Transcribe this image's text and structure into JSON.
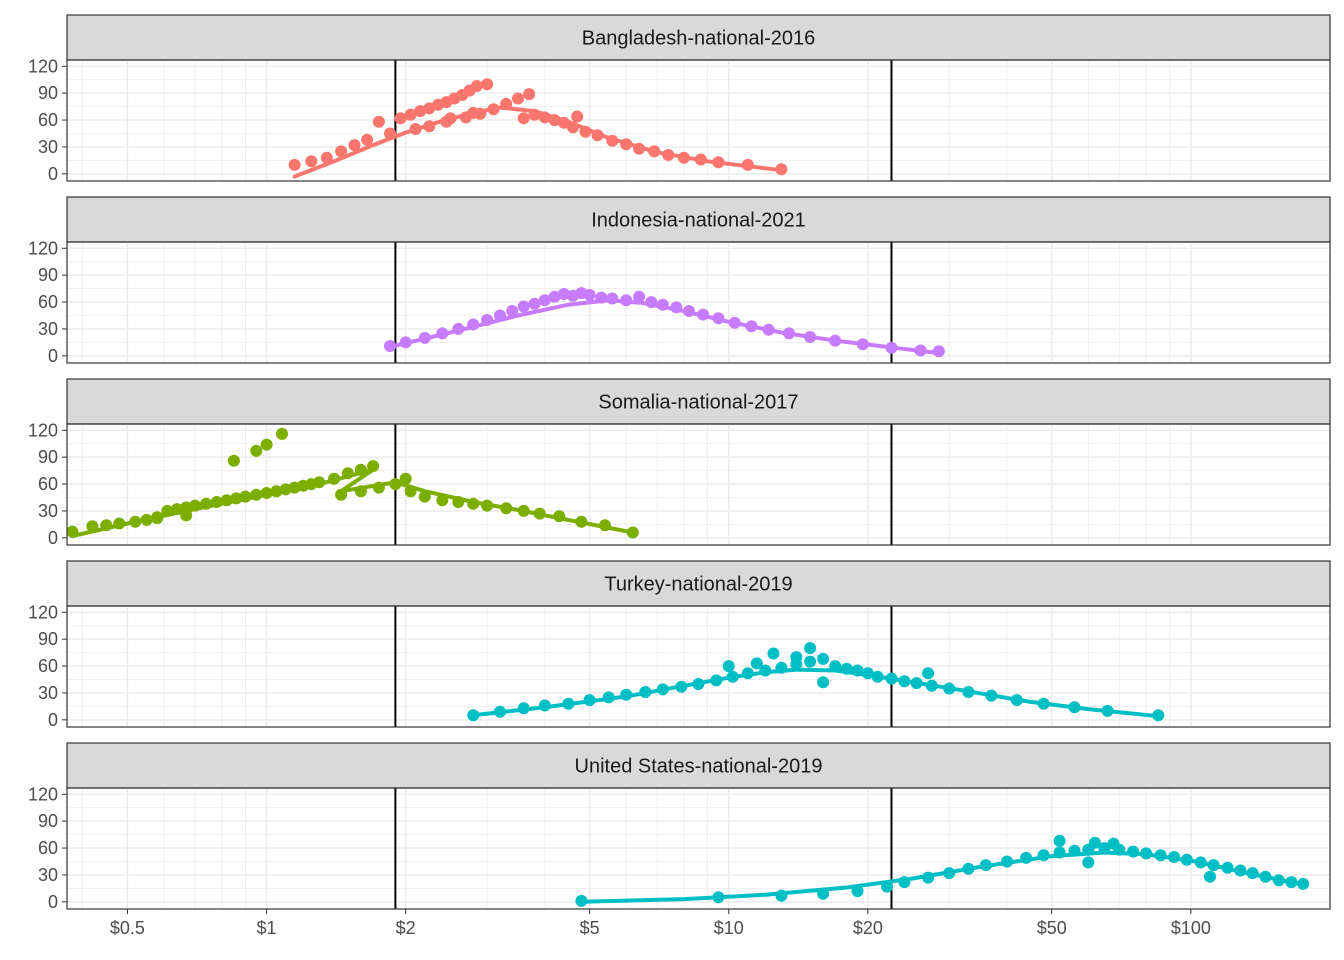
{
  "chart_data": {
    "type": "scatter",
    "facet_layout": "stacked",
    "x_scale": "log",
    "x_label": "",
    "y_label": "",
    "x_range": [
      0.37,
      200
    ],
    "y_range": [
      -8,
      127
    ],
    "x_ticks": [
      {
        "value": 0.5,
        "label": "$0.5"
      },
      {
        "value": 1,
        "label": "$1"
      },
      {
        "value": 2,
        "label": "$2"
      },
      {
        "value": 5,
        "label": "$5"
      },
      {
        "value": 10,
        "label": "$10"
      },
      {
        "value": 20,
        "label": "$20"
      },
      {
        "value": 50,
        "label": "$50"
      },
      {
        "value": 100,
        "label": "$100"
      }
    ],
    "y_ticks": [
      {
        "value": 0,
        "label": "0"
      },
      {
        "value": 30,
        "label": "30"
      },
      {
        "value": 60,
        "label": "60"
      },
      {
        "value": 90,
        "label": "90"
      },
      {
        "value": 120,
        "label": "120"
      }
    ],
    "reference_lines_x": [
      1.9,
      22.5
    ],
    "grid": true,
    "legend": "none",
    "panels": [
      {
        "title": "Bangladesh-national-2016",
        "color": "#F8766D",
        "points": [
          [
            1.15,
            10
          ],
          [
            1.25,
            14
          ],
          [
            1.35,
            18
          ],
          [
            1.45,
            25
          ],
          [
            1.55,
            32
          ],
          [
            1.65,
            38
          ],
          [
            1.75,
            58
          ],
          [
            1.85,
            45
          ],
          [
            1.95,
            62
          ],
          [
            2.05,
            66
          ],
          [
            2.15,
            70
          ],
          [
            2.25,
            73
          ],
          [
            2.35,
            77
          ],
          [
            2.45,
            80
          ],
          [
            2.55,
            84
          ],
          [
            2.65,
            88
          ],
          [
            2.75,
            93
          ],
          [
            2.85,
            98
          ],
          [
            3.0,
            100
          ],
          [
            2.1,
            50
          ],
          [
            2.25,
            53
          ],
          [
            2.45,
            58
          ],
          [
            2.7,
            63
          ],
          [
            2.9,
            67
          ],
          [
            3.1,
            72
          ],
          [
            3.3,
            78
          ],
          [
            3.5,
            84
          ],
          [
            3.7,
            89
          ],
          [
            2.5,
            62
          ],
          [
            2.8,
            68
          ],
          [
            3.6,
            62
          ],
          [
            3.8,
            66
          ],
          [
            4.0,
            63
          ],
          [
            4.2,
            60
          ],
          [
            4.4,
            57
          ],
          [
            4.7,
            64
          ],
          [
            4.6,
            52
          ],
          [
            4.9,
            47
          ],
          [
            5.2,
            43
          ],
          [
            5.6,
            37
          ],
          [
            6.0,
            33
          ],
          [
            6.4,
            28
          ],
          [
            6.9,
            25
          ],
          [
            7.4,
            21
          ],
          [
            8.0,
            18
          ],
          [
            8.7,
            16
          ],
          [
            9.5,
            13
          ],
          [
            11,
            10
          ],
          [
            13,
            5
          ]
        ],
        "fit": [
          [
            1.15,
            -3
          ],
          [
            1.4,
            14
          ],
          [
            1.7,
            32
          ],
          [
            2.0,
            46
          ],
          [
            2.4,
            59
          ],
          [
            2.8,
            68
          ],
          [
            3.2,
            74
          ],
          [
            3.8,
            70
          ],
          [
            4.5,
            58
          ],
          [
            5.5,
            40
          ],
          [
            7,
            24
          ],
          [
            9,
            14
          ],
          [
            13,
            4
          ]
        ]
      },
      {
        "title": "Indonesia-national-2021",
        "color": "#C77CFF",
        "points": [
          [
            1.85,
            11
          ],
          [
            2.0,
            15
          ],
          [
            2.2,
            20
          ],
          [
            2.4,
            25
          ],
          [
            2.6,
            30
          ],
          [
            2.8,
            35
          ],
          [
            3.0,
            40
          ],
          [
            3.2,
            45
          ],
          [
            3.4,
            50
          ],
          [
            3.6,
            55
          ],
          [
            3.8,
            58
          ],
          [
            4.0,
            62
          ],
          [
            4.2,
            66
          ],
          [
            4.4,
            69
          ],
          [
            4.6,
            67
          ],
          [
            4.8,
            70
          ],
          [
            5.0,
            68
          ],
          [
            5.3,
            65
          ],
          [
            5.6,
            64
          ],
          [
            6.0,
            62
          ],
          [
            6.4,
            66
          ],
          [
            6.8,
            60
          ],
          [
            7.2,
            57
          ],
          [
            7.7,
            54
          ],
          [
            8.2,
            50
          ],
          [
            8.8,
            46
          ],
          [
            9.5,
            42
          ],
          [
            10.3,
            37
          ],
          [
            11.2,
            33
          ],
          [
            12.2,
            29
          ],
          [
            13.5,
            25
          ],
          [
            15,
            21
          ],
          [
            17,
            17
          ],
          [
            19.5,
            13
          ],
          [
            22.5,
            9
          ],
          [
            26,
            6
          ],
          [
            28.5,
            5
          ]
        ],
        "fit": [
          [
            1.85,
            10
          ],
          [
            2.5,
            26
          ],
          [
            3.5,
            45
          ],
          [
            4.5,
            57
          ],
          [
            5.5,
            62
          ],
          [
            6.5,
            59
          ],
          [
            8,
            50
          ],
          [
            10,
            38
          ],
          [
            13,
            26
          ],
          [
            17,
            17
          ],
          [
            22,
            10
          ],
          [
            28.5,
            3
          ]
        ]
      },
      {
        "title": "Somalia-national-2017",
        "color": "#7CAE00",
        "points": [
          [
            0.38,
            7
          ],
          [
            0.42,
            13
          ],
          [
            0.45,
            14
          ],
          [
            0.48,
            16
          ],
          [
            0.52,
            18
          ],
          [
            0.55,
            20
          ],
          [
            0.58,
            22
          ],
          [
            0.61,
            30
          ],
          [
            0.64,
            32
          ],
          [
            0.67,
            34
          ],
          [
            0.7,
            36
          ],
          [
            0.74,
            38
          ],
          [
            0.78,
            40
          ],
          [
            0.82,
            42
          ],
          [
            0.86,
            44
          ],
          [
            0.9,
            46
          ],
          [
            0.95,
            48
          ],
          [
            1.0,
            50
          ],
          [
            1.05,
            52
          ],
          [
            1.1,
            54
          ],
          [
            1.15,
            56
          ],
          [
            1.2,
            58
          ],
          [
            1.25,
            60
          ],
          [
            1.3,
            62
          ],
          [
            1.4,
            66
          ],
          [
            1.5,
            72
          ],
          [
            1.6,
            76
          ],
          [
            1.7,
            80
          ],
          [
            0.58,
            23
          ],
          [
            0.67,
            25
          ],
          [
            0.85,
            86
          ],
          [
            0.95,
            97
          ],
          [
            1.0,
            104
          ],
          [
            1.08,
            116
          ],
          [
            1.45,
            48
          ],
          [
            1.6,
            52
          ],
          [
            1.75,
            56
          ],
          [
            1.9,
            60
          ],
          [
            2.0,
            66
          ],
          [
            2.05,
            52
          ],
          [
            2.2,
            46
          ],
          [
            2.4,
            42
          ],
          [
            2.6,
            40
          ],
          [
            2.8,
            38
          ],
          [
            3.0,
            36
          ],
          [
            3.3,
            33
          ],
          [
            3.6,
            30
          ],
          [
            3.9,
            27
          ],
          [
            4.3,
            24
          ],
          [
            4.8,
            18
          ],
          [
            5.4,
            14
          ],
          [
            6.2,
            6
          ]
        ],
        "fit": [
          [
            0.38,
            2
          ],
          [
            0.5,
            16
          ],
          [
            0.7,
            32
          ],
          [
            1.0,
            48
          ],
          [
            1.3,
            60
          ],
          [
            1.7,
            76
          ],
          [
            1.45,
            52
          ],
          [
            1.9,
            62
          ],
          [
            2.2,
            52
          ],
          [
            2.8,
            40
          ],
          [
            3.5,
            31
          ],
          [
            4.5,
            20
          ],
          [
            6.2,
            6
          ]
        ]
      },
      {
        "title": "Turkey-national-2019",
        "color": "#00BFC4",
        "points": [
          [
            2.8,
            5
          ],
          [
            3.2,
            9
          ],
          [
            3.6,
            13
          ],
          [
            4.0,
            16
          ],
          [
            4.5,
            18
          ],
          [
            5.0,
            22
          ],
          [
            5.5,
            25
          ],
          [
            6.0,
            28
          ],
          [
            6.6,
            31
          ],
          [
            7.2,
            34
          ],
          [
            7.9,
            37
          ],
          [
            8.6,
            40
          ],
          [
            9.4,
            44
          ],
          [
            10.2,
            48
          ],
          [
            11,
            52
          ],
          [
            12,
            55
          ],
          [
            13,
            58
          ],
          [
            14,
            62
          ],
          [
            15,
            65
          ],
          [
            16,
            68
          ],
          [
            17,
            60
          ],
          [
            18,
            57
          ],
          [
            19,
            55
          ],
          [
            20,
            52
          ],
          [
            21,
            48
          ],
          [
            22.5,
            46
          ],
          [
            24,
            43
          ],
          [
            25.5,
            41
          ],
          [
            27.5,
            38
          ],
          [
            30,
            35
          ],
          [
            33,
            31
          ],
          [
            37,
            27
          ],
          [
            42,
            22
          ],
          [
            48,
            18
          ],
          [
            56,
            14
          ],
          [
            66,
            10
          ],
          [
            85,
            5
          ],
          [
            10,
            60
          ],
          [
            11.5,
            63
          ],
          [
            12.5,
            74
          ],
          [
            15,
            80
          ],
          [
            16,
            42
          ],
          [
            14,
            70
          ],
          [
            27,
            52
          ]
        ],
        "fit": [
          [
            2.8,
            5
          ],
          [
            4,
            14
          ],
          [
            6,
            26
          ],
          [
            8,
            38
          ],
          [
            10,
            47
          ],
          [
            12,
            53
          ],
          [
            14,
            56
          ],
          [
            17,
            55
          ],
          [
            20,
            50
          ],
          [
            25,
            42
          ],
          [
            32,
            33
          ],
          [
            45,
            20
          ],
          [
            60,
            12
          ],
          [
            85,
            4
          ]
        ]
      },
      {
        "title": "United States-national-2019",
        "color": "#00BFC4",
        "points": [
          [
            4.8,
            1
          ],
          [
            9.5,
            5
          ],
          [
            13,
            7
          ],
          [
            16,
            9
          ],
          [
            19,
            12
          ],
          [
            22,
            17
          ],
          [
            24,
            22
          ],
          [
            27,
            27
          ],
          [
            30,
            32
          ],
          [
            33,
            37
          ],
          [
            36,
            41
          ],
          [
            40,
            45
          ],
          [
            44,
            49
          ],
          [
            48,
            52
          ],
          [
            52,
            55
          ],
          [
            56,
            57
          ],
          [
            60,
            58
          ],
          [
            65,
            60
          ],
          [
            70,
            58
          ],
          [
            75,
            56
          ],
          [
            80,
            54
          ],
          [
            86,
            52
          ],
          [
            92,
            50
          ],
          [
            98,
            47
          ],
          [
            105,
            44
          ],
          [
            112,
            41
          ],
          [
            120,
            38
          ],
          [
            128,
            35
          ],
          [
            136,
            32
          ],
          [
            145,
            28
          ],
          [
            155,
            24
          ],
          [
            165,
            22
          ],
          [
            175,
            20
          ],
          [
            52,
            68
          ],
          [
            62,
            66
          ],
          [
            68,
            65
          ],
          [
            60,
            44
          ],
          [
            110,
            28
          ]
        ],
        "fit": [
          [
            4.8,
            0
          ],
          [
            8,
            3
          ],
          [
            12,
            8
          ],
          [
            18,
            16
          ],
          [
            25,
            26
          ],
          [
            35,
            39
          ],
          [
            50,
            51
          ],
          [
            65,
            55
          ],
          [
            80,
            53
          ],
          [
            100,
            46
          ],
          [
            130,
            33
          ],
          [
            175,
            19
          ]
        ]
      }
    ]
  }
}
